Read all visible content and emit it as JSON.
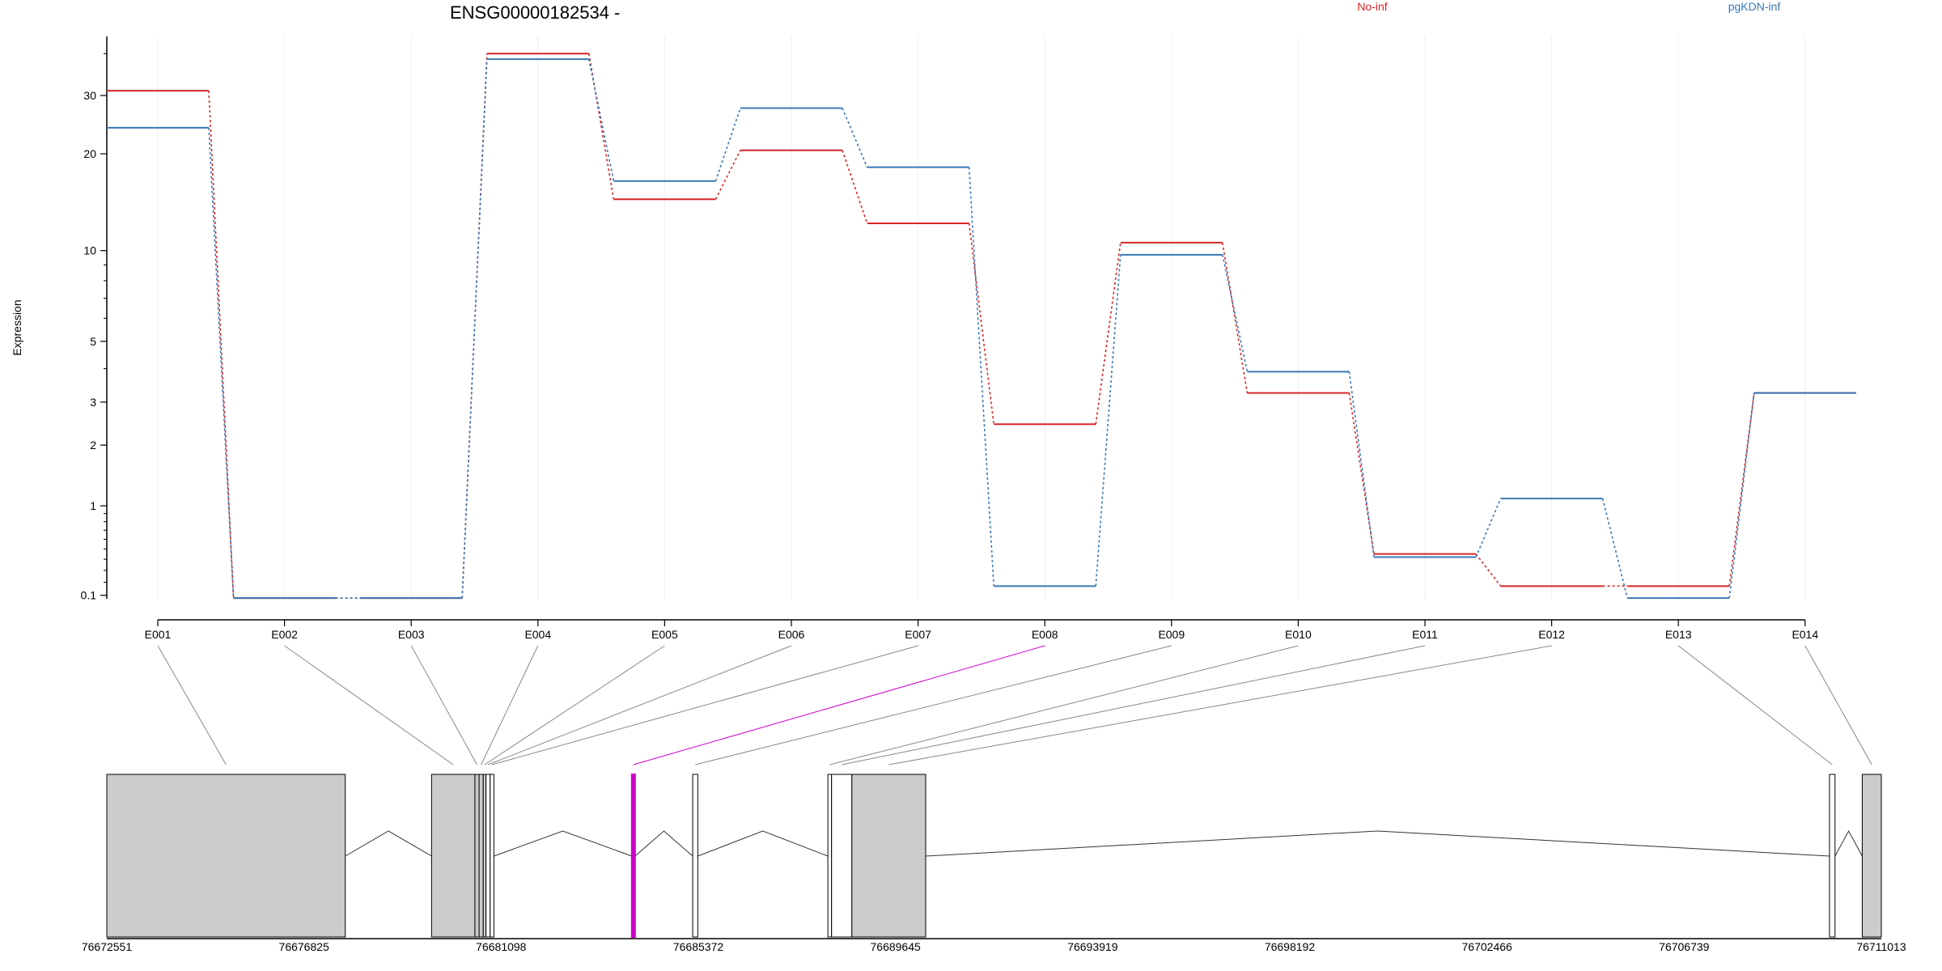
{
  "chart_data": {
    "type": "line",
    "title": "ENSG00000182534 -",
    "ylabel": "Expression",
    "xlabel": "",
    "y_scale": "log (shifted)",
    "y_ticks": [
      0.1,
      1,
      2,
      3,
      5,
      10,
      20,
      30
    ],
    "ylim": [
      0.075,
      45
    ],
    "grid": "vertical, light",
    "legend_placement": "top (in-line)",
    "categories": [
      "E001",
      "E002",
      "E003",
      "E004",
      "E005",
      "E006",
      "E007",
      "E008",
      "E009",
      "E010",
      "E011",
      "E012",
      "E013",
      "E014"
    ],
    "series": [
      {
        "name": "No-inf",
        "color": "#d62728",
        "values": [
          31,
          0.08,
          0.08,
          40,
          14.5,
          20.5,
          12.2,
          2.45,
          10.6,
          3.25,
          0.45,
          0.17,
          0.17,
          3.25
        ]
      },
      {
        "name": "pgKDN-inf",
        "color": "#3a78b5",
        "values": [
          24,
          0.08,
          0.08,
          38.5,
          16.5,
          27.5,
          18.2,
          0.17,
          9.7,
          3.9,
          0.42,
          1.1,
          0.08,
          3.25
        ]
      }
    ],
    "gene_model": {
      "ticks": [
        "76672551",
        "76676825",
        "76681098",
        "76685372",
        "76689645",
        "76693919",
        "76698192",
        "76702466",
        "76706739",
        "76711013"
      ],
      "start": 76672551,
      "end": 76711013,
      "highlight_color": "#cc00cc",
      "highlight_exon": "E008",
      "exon_fill": "#cccccc",
      "exons": [
        {
          "id": "E001",
          "start": 76672551,
          "end": 76677720,
          "filled": true
        },
        {
          "id": "E002",
          "start": 76679590,
          "end": 76680530,
          "filled": true
        },
        {
          "id": "E003",
          "start": 76680530,
          "end": 76680620,
          "filled": true
        },
        {
          "id": "E004",
          "start": 76680620,
          "end": 76680710,
          "filled": true
        },
        {
          "id": "E005",
          "start": 76680710,
          "end": 76680770,
          "filled": true
        },
        {
          "id": "E006",
          "start": 76680770,
          "end": 76680860,
          "filled": false
        },
        {
          "id": "E007",
          "start": 76680860,
          "end": 76680940,
          "filled": false
        },
        {
          "id": "E008",
          "start": 76683930,
          "end": 76684000,
          "filled": false
        },
        {
          "id": "E009",
          "start": 76685250,
          "end": 76685360,
          "filled": false
        },
        {
          "id": "E010",
          "start": 76688180,
          "end": 76688260,
          "filled": false
        },
        {
          "id": "E011",
          "start": 76688260,
          "end": 76688700,
          "filled": false
        },
        {
          "id": "E012",
          "start": 76688700,
          "end": 76690300,
          "filled": true
        },
        {
          "id": "E013",
          "start": 76709890,
          "end": 76710010,
          "filled": false
        },
        {
          "id": "E014",
          "start": 76710600,
          "end": 76711013,
          "filled": true
        }
      ]
    }
  }
}
